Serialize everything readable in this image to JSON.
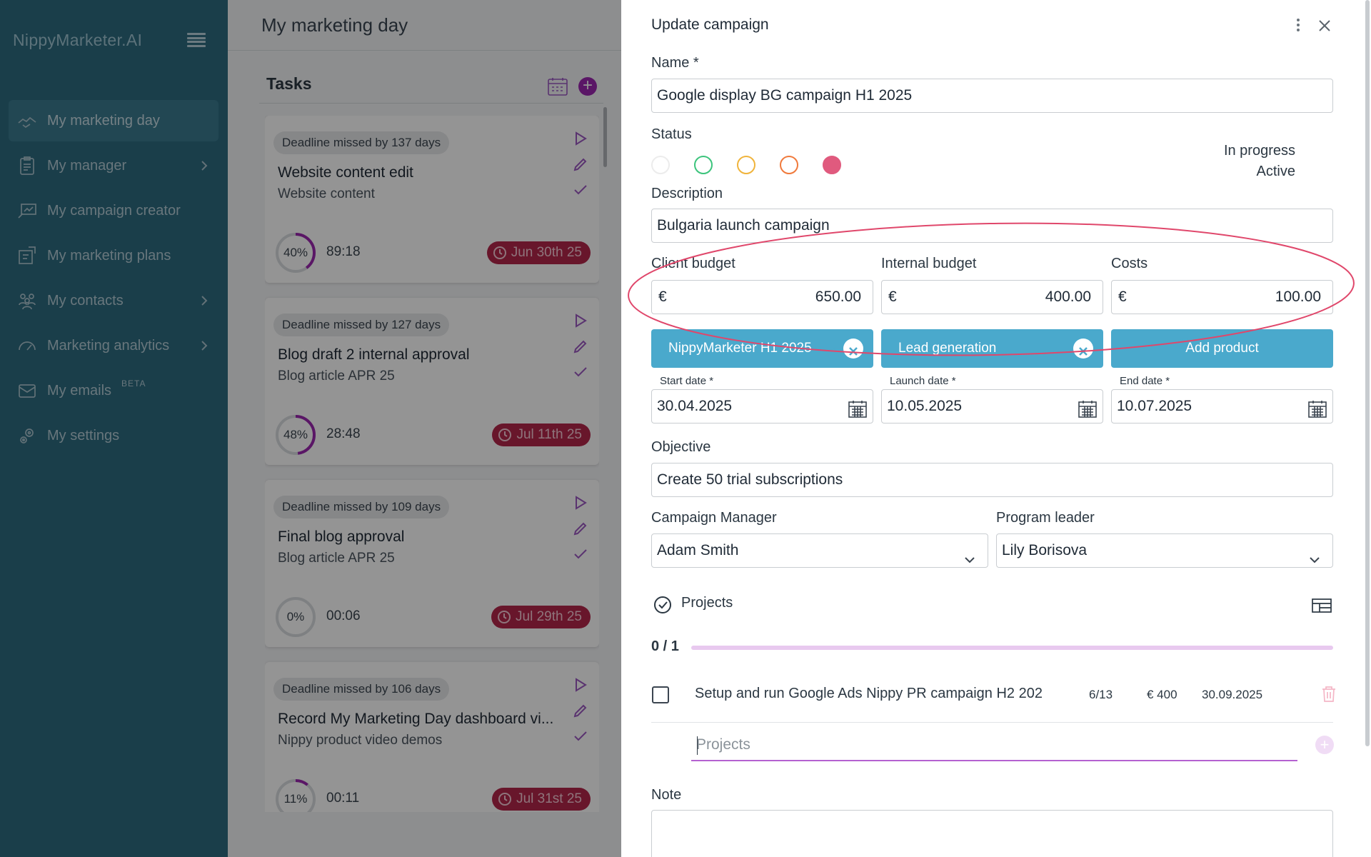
{
  "sidebar": {
    "logo": "NippyMarketer.AI",
    "items": [
      {
        "label": "My marketing day"
      },
      {
        "label": "My manager"
      },
      {
        "label": "My campaign creator"
      },
      {
        "label": "My marketing plans"
      },
      {
        "label": "My contacts"
      },
      {
        "label": "Marketing analytics"
      },
      {
        "label": "My emails",
        "badge": "BETA"
      },
      {
        "label": "My settings"
      }
    ]
  },
  "main": {
    "title": "My marketing day",
    "tasks_heading": "Tasks",
    "tasks": [
      {
        "missed": "Deadline missed by 137 days",
        "title": "Website content edit",
        "subtitle": "Website content",
        "progress_label": "40%",
        "progress": 0.4,
        "timer": "89:18",
        "due": "Jun 30th 25"
      },
      {
        "missed": "Deadline missed by 127 days",
        "title": "Blog draft 2 internal approval",
        "subtitle": "Blog article APR 25",
        "progress_label": "48%",
        "progress": 0.48,
        "timer": "28:48",
        "due": "Jul 11th 25"
      },
      {
        "missed": "Deadline missed by 109 days",
        "title": "Final blog approval",
        "subtitle": "Blog article APR 25",
        "progress_label": "0%",
        "progress": 0.0,
        "timer": "00:06",
        "due": "Jul 29th 25"
      },
      {
        "missed": "Deadline missed by 106 days",
        "title": "Record My Marketing Day dashboard vi...",
        "subtitle": "Nippy product video demos",
        "progress_label": "11%",
        "progress": 0.11,
        "timer": "00:11",
        "due": "Jul 31st 25"
      }
    ]
  },
  "panel": {
    "title": "Update campaign",
    "name_label": "Name *",
    "name_value": "Google display BG campaign H1 2025",
    "status_label": "Status",
    "status_colors": [
      "#f3f3f3",
      "#3cc47c",
      "#f0b43c",
      "#f07a3c",
      "#e05a7e"
    ],
    "status_text_1": "In progress",
    "status_text_2": "Active",
    "description_label": "Description",
    "description_value": "Bulgaria launch campaign",
    "client_budget_label": "Client budget",
    "internal_budget_label": "Internal budget",
    "costs_label": "Costs",
    "currency": "€",
    "client_budget": "650.00",
    "internal_budget": "400.00",
    "costs": "100.00",
    "tag_1": "NippyMarketer H1 2025",
    "tag_2": "Lead generation",
    "add_product": "Add product",
    "start_label": "Start date *",
    "launch_label": "Launch date *",
    "end_label": "End date *",
    "start_date": "30.04.2025",
    "launch_date": "10.05.2025",
    "end_date": "10.07.2025",
    "objective_label": "Objective",
    "objective_value": "Create 50 trial subscriptions",
    "manager_label": "Campaign Manager",
    "manager_value": "Adam Smith",
    "leader_label": "Program leader",
    "leader_value": "Lily Borisova",
    "projects_label": "Projects",
    "projects_count": "0 / 1",
    "project_row": {
      "name": "Setup and run Google Ads Nippy PR campaign H2 202",
      "tasks": "6/13",
      "budget": "€ 400",
      "date": "30.09.2025"
    },
    "projects_placeholder": "Projects",
    "note_label": "Note"
  },
  "colors": {
    "sidebar": "#2d6b80",
    "accent": "#4aa9cc",
    "purple": "#9c27b0",
    "due": "#b3264a",
    "annotation": "#e0476b"
  }
}
